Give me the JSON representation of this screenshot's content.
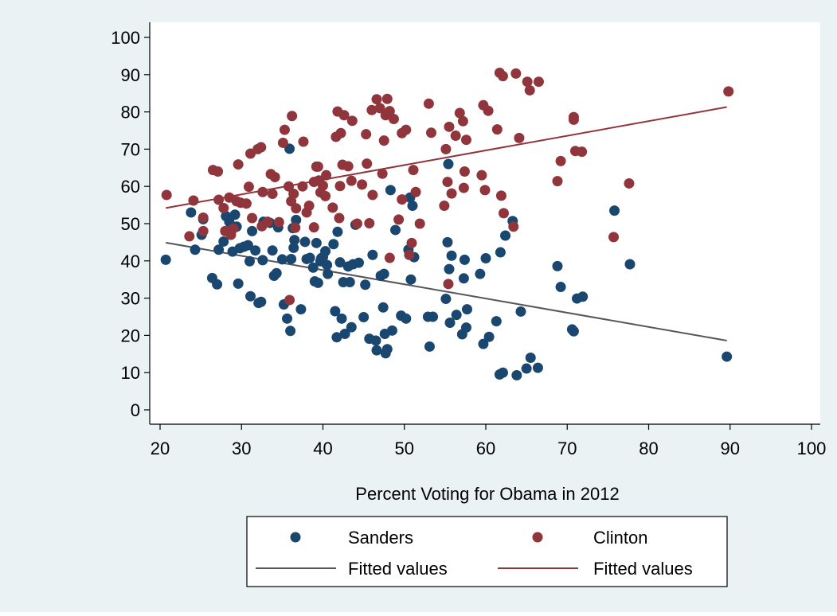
{
  "chart_data": {
    "type": "scatter",
    "title": "",
    "xlabel": "Percent Voting for Obama in 2012",
    "ylabel": "",
    "xlim": [
      20,
      100
    ],
    "ylim": [
      0,
      100
    ],
    "xticks": [
      20,
      30,
      40,
      50,
      60,
      70,
      80,
      90,
      100
    ],
    "yticks": [
      0,
      10,
      20,
      30,
      40,
      50,
      60,
      70,
      80,
      90,
      100
    ],
    "grid": false,
    "legend_position": "bottom",
    "colors": {
      "background": "#EAF2F3",
      "plot_background": "#FFFFFF",
      "sanders": "#1A476F",
      "clinton": "#90353B",
      "sanders_fit": "#55555B",
      "clinton_fit": "#90353B"
    },
    "series": [
      {
        "name": "Sanders",
        "kind": "scatter",
        "color_key": "sanders",
        "points": [
          [
            20.7,
            40.3
          ],
          [
            23.8,
            53
          ],
          [
            24.3,
            43
          ],
          [
            25.3,
            51.2
          ],
          [
            25.1,
            47
          ],
          [
            26.4,
            35.4
          ],
          [
            27.0,
            33.7
          ],
          [
            27.2,
            43.0
          ],
          [
            27.8,
            45.2
          ],
          [
            28.1,
            52.0
          ],
          [
            28.5,
            50.5
          ],
          [
            28.9,
            42.5
          ],
          [
            29.2,
            52.4
          ],
          [
            29.4,
            49.2
          ],
          [
            29.8,
            43.4
          ],
          [
            29.6,
            33.9
          ],
          [
            30.3,
            43.8
          ],
          [
            30.8,
            44.2
          ],
          [
            31.0,
            39.9
          ],
          [
            31.1,
            30.5
          ],
          [
            31.3,
            48.0
          ],
          [
            31.7,
            42.8
          ],
          [
            32.1,
            28.7
          ],
          [
            32.4,
            29.0
          ],
          [
            32.6,
            40.2
          ],
          [
            32.7,
            50.5
          ],
          [
            33.5,
            50.2
          ],
          [
            33.8,
            42.8
          ],
          [
            34.0,
            36.0
          ],
          [
            34.3,
            36.7
          ],
          [
            34.5,
            49.0
          ],
          [
            35.0,
            40.4
          ],
          [
            35.2,
            28.3
          ],
          [
            35.6,
            24.5
          ],
          [
            35.9,
            70.1
          ],
          [
            36.0,
            21.2
          ],
          [
            36.1,
            40.5
          ],
          [
            36.3,
            48.8
          ],
          [
            36.5,
            45.6
          ],
          [
            36.7,
            51.0
          ],
          [
            36.4,
            43.5
          ],
          [
            37.3,
            27.0
          ],
          [
            37.8,
            45.1
          ],
          [
            38.0,
            40.5
          ],
          [
            38.4,
            40.8
          ],
          [
            38.8,
            38.2
          ],
          [
            39.0,
            34.5
          ],
          [
            39.2,
            44.8
          ],
          [
            39.4,
            34.1
          ],
          [
            39.7,
            39.9
          ],
          [
            39.8,
            40.7
          ],
          [
            40.0,
            41.0
          ],
          [
            40.3,
            42.6
          ],
          [
            40.6,
            36.5
          ],
          [
            40.5,
            38.9
          ],
          [
            41.3,
            44.5
          ],
          [
            41.5,
            26.5
          ],
          [
            41.8,
            47.8
          ],
          [
            41.7,
            19.5
          ],
          [
            42.1,
            39.6
          ],
          [
            42.3,
            24.5
          ],
          [
            42.5,
            34.3
          ],
          [
            42.7,
            20.4
          ],
          [
            43.1,
            38.5
          ],
          [
            43.3,
            34.3
          ],
          [
            43.5,
            22.2
          ],
          [
            43.7,
            39.1
          ],
          [
            44.0,
            49.7
          ],
          [
            44.4,
            39.5
          ],
          [
            45.0,
            24.9
          ],
          [
            45.2,
            33.6
          ],
          [
            45.7,
            19.1
          ],
          [
            46.1,
            41.6
          ],
          [
            46.5,
            18.6
          ],
          [
            46.6,
            16.0
          ],
          [
            47.1,
            36.0
          ],
          [
            47.4,
            27.5
          ],
          [
            47.5,
            36.5
          ],
          [
            47.6,
            20.4
          ],
          [
            47.7,
            15.2
          ],
          [
            47.9,
            16.3
          ],
          [
            48.3,
            59.0
          ],
          [
            48.5,
            21.3
          ],
          [
            48.9,
            48.3
          ],
          [
            49.6,
            25.3
          ],
          [
            50.2,
            24.5
          ],
          [
            50.5,
            43.0
          ],
          [
            50.7,
            57.0
          ],
          [
            50.8,
            35.0
          ],
          [
            51.2,
            41.0
          ],
          [
            52.9,
            25.0
          ],
          [
            53.1,
            17.0
          ],
          [
            53.5,
            25.0
          ],
          [
            55.1,
            29.8
          ],
          [
            55.3,
            45.0
          ],
          [
            55.5,
            37.8
          ],
          [
            55.6,
            23.4
          ],
          [
            55.8,
            41.4
          ],
          [
            56.4,
            25.5
          ],
          [
            57.1,
            20.3
          ],
          [
            57.4,
            40.3
          ],
          [
            57.3,
            35.3
          ],
          [
            57.7,
            27.0
          ],
          [
            57.6,
            22.1
          ],
          [
            59.3,
            36.5
          ],
          [
            59.7,
            17.7
          ],
          [
            60.0,
            40.7
          ],
          [
            60.4,
            19.6
          ],
          [
            61.3,
            23.8
          ],
          [
            61.7,
            9.5
          ],
          [
            61.8,
            42.3
          ],
          [
            62.1,
            10.0
          ],
          [
            62.4,
            46.8
          ],
          [
            63.3,
            50.7
          ],
          [
            63.8,
            9.3
          ],
          [
            64.3,
            26.4
          ],
          [
            65.0,
            11.1
          ],
          [
            65.5,
            14.0
          ],
          [
            66.4,
            11.3
          ],
          [
            68.8,
            38.6
          ],
          [
            69.2,
            33.0
          ],
          [
            70.6,
            21.6
          ],
          [
            70.8,
            21.1
          ],
          [
            71.2,
            29.9
          ],
          [
            71.9,
            30.4
          ],
          [
            75.8,
            53.5
          ],
          [
            77.7,
            39.1
          ],
          [
            89.6,
            14.3
          ],
          [
            55.4,
            66.0
          ],
          [
            51.0,
            54.8
          ]
        ]
      },
      {
        "name": "Clinton",
        "kind": "scatter",
        "color_key": "clinton",
        "points": [
          [
            20.8,
            57.7
          ],
          [
            23.6,
            46.6
          ],
          [
            24.1,
            56.2
          ],
          [
            25.3,
            51.6
          ],
          [
            25.3,
            48.0
          ],
          [
            26.5,
            64.4
          ],
          [
            27.1,
            64.0
          ],
          [
            27.2,
            56.4
          ],
          [
            27.8,
            54.2
          ],
          [
            28.0,
            48.0
          ],
          [
            28.5,
            57.0
          ],
          [
            28.7,
            47.0
          ],
          [
            29.0,
            48.7
          ],
          [
            29.4,
            56.0
          ],
          [
            29.6,
            65.9
          ],
          [
            29.9,
            55.6
          ],
          [
            30.6,
            55.4
          ],
          [
            30.9,
            59.9
          ],
          [
            31.1,
            68.8
          ],
          [
            31.3,
            51.5
          ],
          [
            32.0,
            70.0
          ],
          [
            32.4,
            70.5
          ],
          [
            32.6,
            58.5
          ],
          [
            32.5,
            49.3
          ],
          [
            33.2,
            50.5
          ],
          [
            33.6,
            63.3
          ],
          [
            33.8,
            58.0
          ],
          [
            34.1,
            62.5
          ],
          [
            34.6,
            50.4
          ],
          [
            35.1,
            71.7
          ],
          [
            35.3,
            75.2
          ],
          [
            35.8,
            60.0
          ],
          [
            35.9,
            29.5
          ],
          [
            36.2,
            78.9
          ],
          [
            36.1,
            56.0
          ],
          [
            36.4,
            58.0
          ],
          [
            36.7,
            54.1
          ],
          [
            36.6,
            48.9
          ],
          [
            37.6,
            72.0
          ],
          [
            38.0,
            53.0
          ],
          [
            38.3,
            54.8
          ],
          [
            38.9,
            49.0
          ],
          [
            38.9,
            61.2
          ],
          [
            39.2,
            65.3
          ],
          [
            39.4,
            65.3
          ],
          [
            39.5,
            61.6
          ],
          [
            39.7,
            58.4
          ],
          [
            40.0,
            60.2
          ],
          [
            40.3,
            57.4
          ],
          [
            40.4,
            63.0
          ],
          [
            41.2,
            54.3
          ],
          [
            41.6,
            73.3
          ],
          [
            41.8,
            80.1
          ],
          [
            42.0,
            51.5
          ],
          [
            42.1,
            60.1
          ],
          [
            42.2,
            74.3
          ],
          [
            42.4,
            65.8
          ],
          [
            42.6,
            79.1
          ],
          [
            43.1,
            65.4
          ],
          [
            43.5,
            61.5
          ],
          [
            43.6,
            77.6
          ],
          [
            44.2,
            50.0
          ],
          [
            44.8,
            60.5
          ],
          [
            45.3,
            74.0
          ],
          [
            45.4,
            66.1
          ],
          [
            45.7,
            50.1
          ],
          [
            46.0,
            80.5
          ],
          [
            46.1,
            57.7
          ],
          [
            46.6,
            83.4
          ],
          [
            47.0,
            81.0
          ],
          [
            47.3,
            63.4
          ],
          [
            47.5,
            72.3
          ],
          [
            47.7,
            79.1
          ],
          [
            47.9,
            83.5
          ],
          [
            48.2,
            80.2
          ],
          [
            48.2,
            40.8
          ],
          [
            48.7,
            78.1
          ],
          [
            49.3,
            51.1
          ],
          [
            49.7,
            74.3
          ],
          [
            50.2,
            75.2
          ],
          [
            50.6,
            41.6
          ],
          [
            50.9,
            44.8
          ],
          [
            51.1,
            64.4
          ],
          [
            51.4,
            58.5
          ],
          [
            53.0,
            82.2
          ],
          [
            53.3,
            74.4
          ],
          [
            55.1,
            70.0
          ],
          [
            55.3,
            61.2
          ],
          [
            55.5,
            76.0
          ],
          [
            55.4,
            33.8
          ],
          [
            55.8,
            58.1
          ],
          [
            56.3,
            73.6
          ],
          [
            56.8,
            79.7
          ],
          [
            57.2,
            77.5
          ],
          [
            57.3,
            59.6
          ],
          [
            57.4,
            64.0
          ],
          [
            57.6,
            72.5
          ],
          [
            59.5,
            63.0
          ],
          [
            59.7,
            81.8
          ],
          [
            59.9,
            59.0
          ],
          [
            60.3,
            80.3
          ],
          [
            61.4,
            75.3
          ],
          [
            61.7,
            90.5
          ],
          [
            61.9,
            57.5
          ],
          [
            62.1,
            89.6
          ],
          [
            62.2,
            52.8
          ],
          [
            63.4,
            49.2
          ],
          [
            63.7,
            90.3
          ],
          [
            64.1,
            73.0
          ],
          [
            65.1,
            88.1
          ],
          [
            65.4,
            85.8
          ],
          [
            66.5,
            88.1
          ],
          [
            68.8,
            61.4
          ],
          [
            69.2,
            66.8
          ],
          [
            70.8,
            77.9
          ],
          [
            70.8,
            78.6
          ],
          [
            71.0,
            69.5
          ],
          [
            71.8,
            69.3
          ],
          [
            75.7,
            46.4
          ],
          [
            77.6,
            60.8
          ],
          [
            89.8,
            85.5
          ],
          [
            51.9,
            50.0
          ],
          [
            54.9,
            54.8
          ],
          [
            49.7,
            56.5
          ],
          [
            37.5,
            60.0
          ]
        ]
      },
      {
        "name": "Fitted values",
        "kind": "line",
        "color_key": "sanders_fit",
        "line_points": [
          [
            20.7,
            44.9
          ],
          [
            89.6,
            18.6
          ]
        ]
      },
      {
        "name": "Fitted values",
        "kind": "line",
        "color_key": "clinton_fit",
        "line_points": [
          [
            20.7,
            54.2
          ],
          [
            89.6,
            81.3
          ]
        ]
      }
    ]
  },
  "legend": {
    "items": [
      {
        "label": "Sanders",
        "symbol": "marker",
        "color_key": "sanders"
      },
      {
        "label": "Clinton",
        "symbol": "marker",
        "color_key": "clinton"
      },
      {
        "label": "Fitted values",
        "symbol": "line",
        "color_key": "sanders_fit"
      },
      {
        "label": "Fitted values",
        "symbol": "line",
        "color_key": "clinton_fit"
      }
    ]
  }
}
